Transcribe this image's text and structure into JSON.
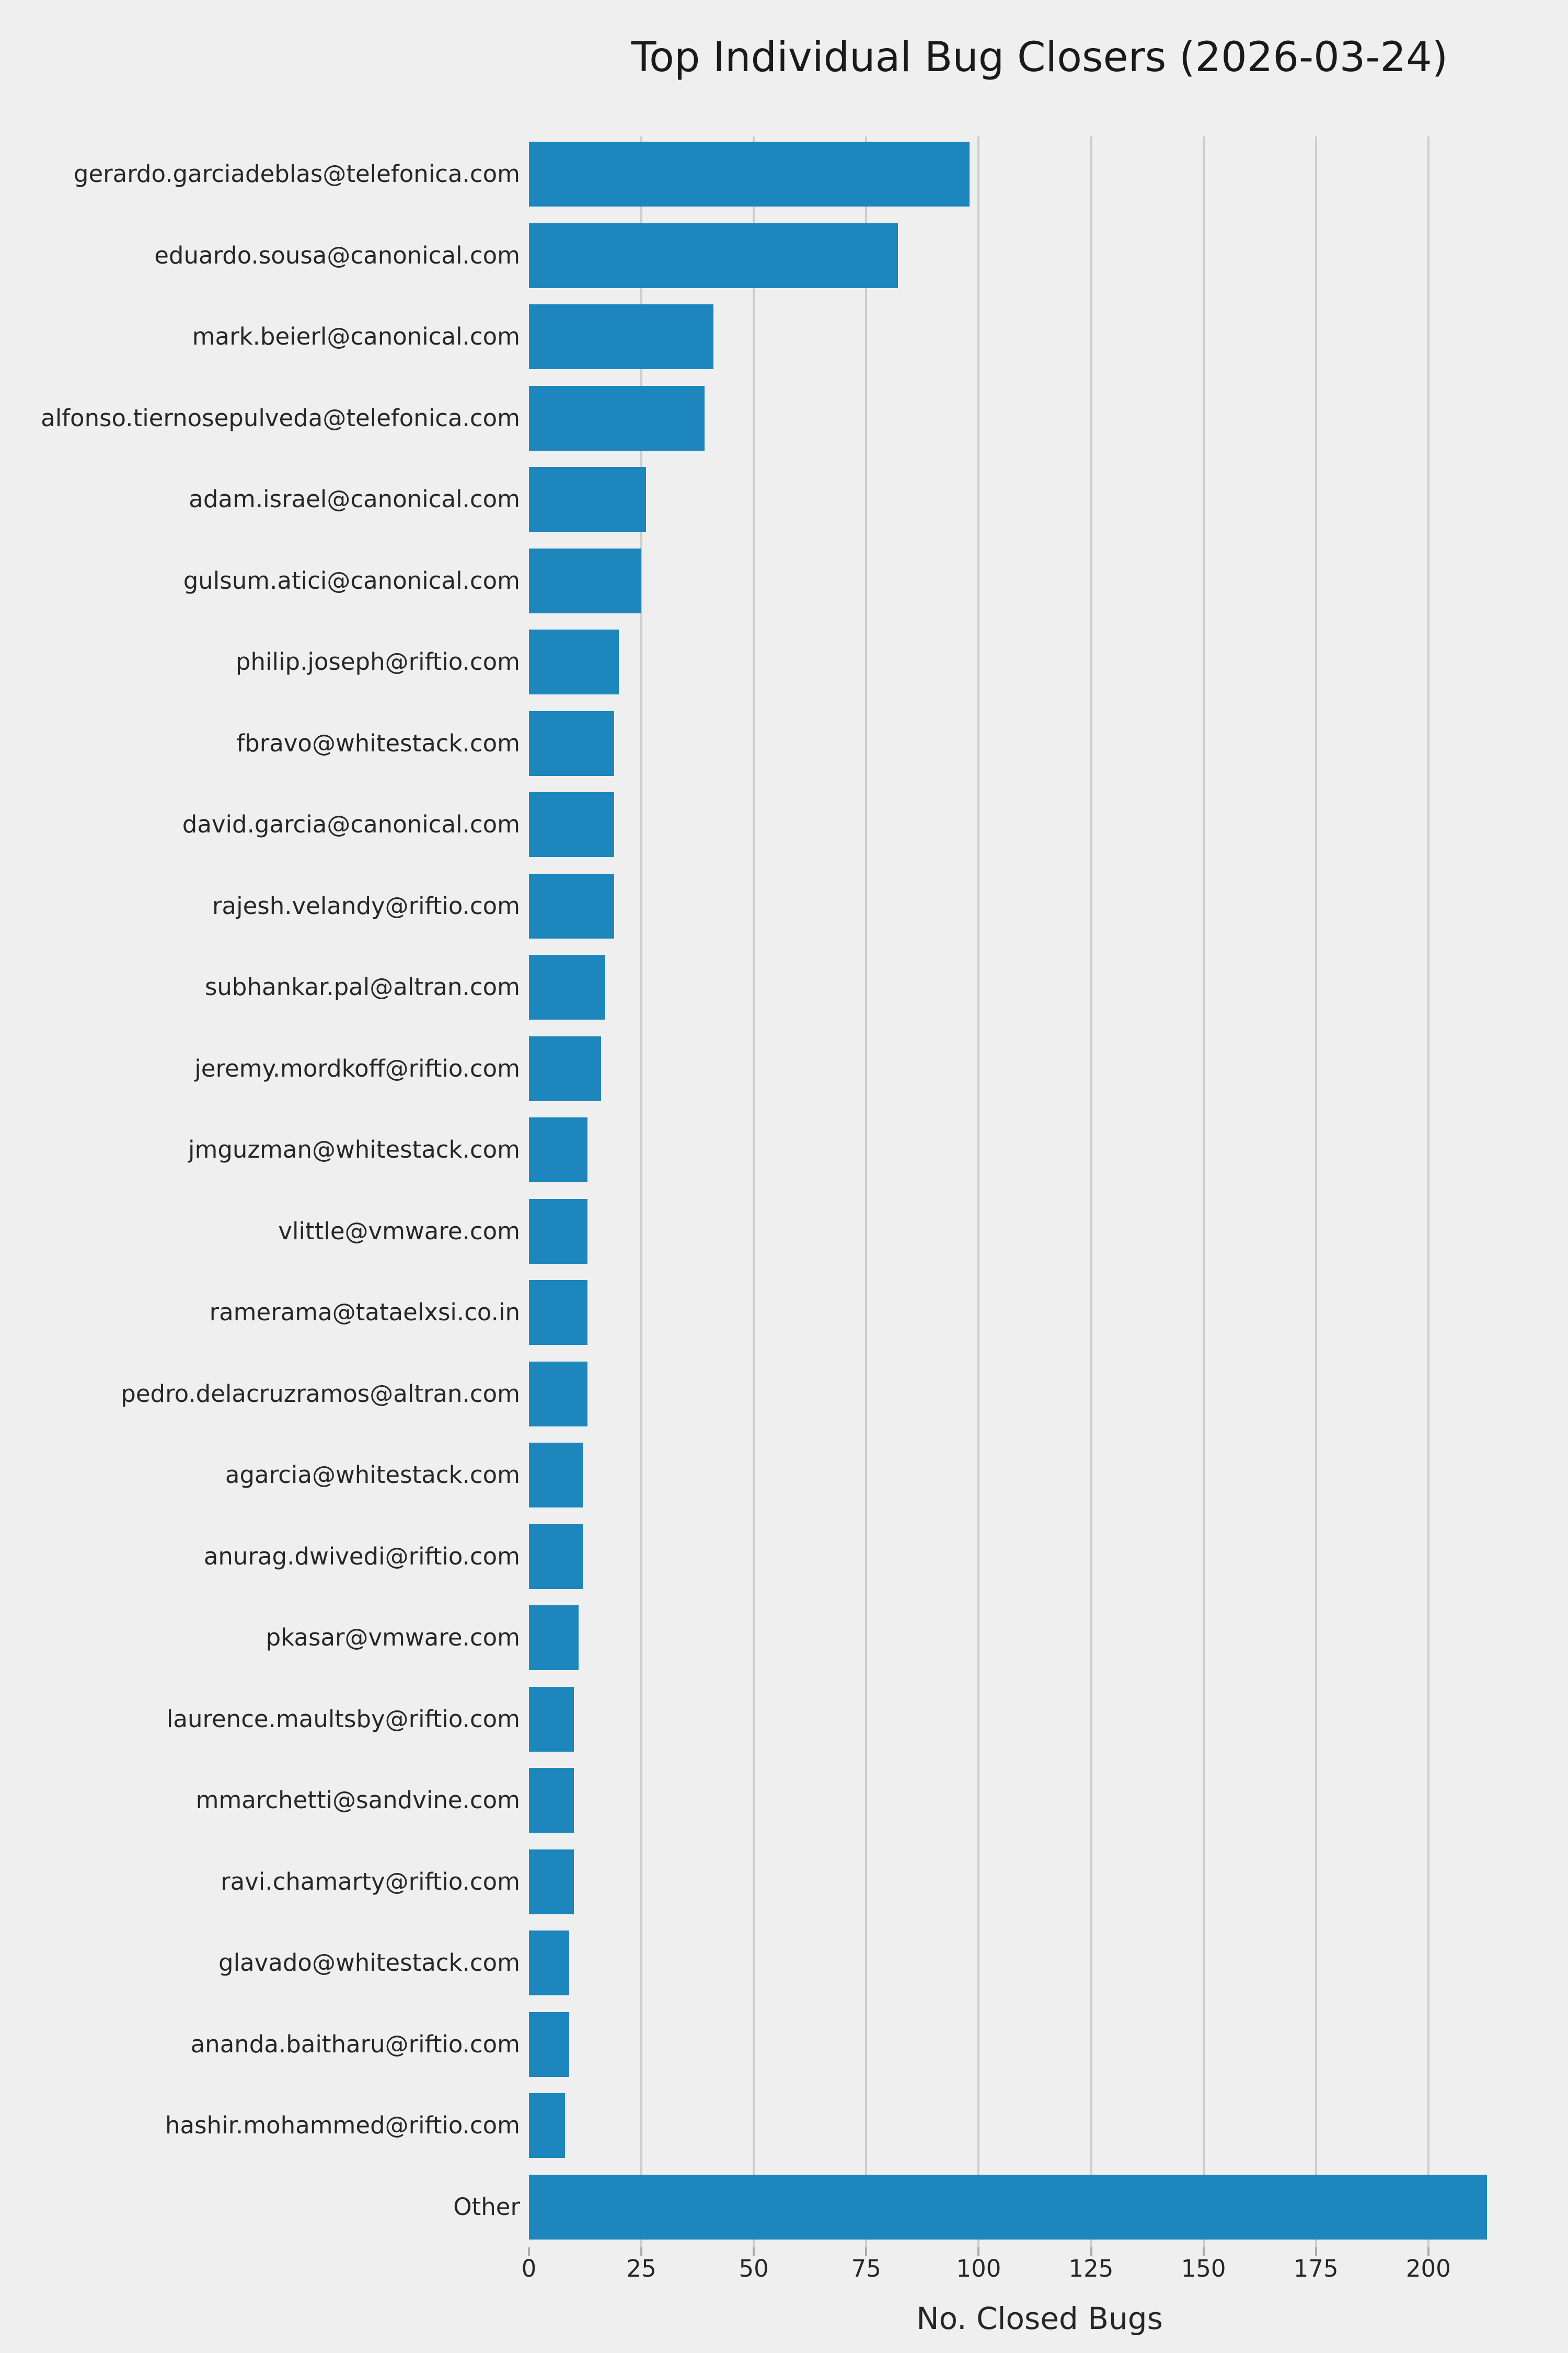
{
  "chart_data": {
    "type": "bar",
    "orientation": "horizontal",
    "title": "Top Individual Bug Closers (2026-03-24)",
    "xlabel": "No. Closed Bugs",
    "ylabel": "",
    "legend": false,
    "grid": true,
    "categories": [
      "gerardo.garciadeblas@telefonica.com",
      "eduardo.sousa@canonical.com",
      "mark.beierl@canonical.com",
      "alfonso.tiernosepulveda@telefonica.com",
      "adam.israel@canonical.com",
      "gulsum.atici@canonical.com",
      "philip.joseph@riftio.com",
      "fbravo@whitestack.com",
      "david.garcia@canonical.com",
      "rajesh.velandy@riftio.com",
      "subhankar.pal@altran.com",
      "jeremy.mordkoff@riftio.com",
      "jmguzman@whitestack.com",
      "vlittle@vmware.com",
      "ramerama@tataelxsi.co.in",
      "pedro.delacruzramos@altran.com",
      "agarcia@whitestack.com",
      "anurag.dwivedi@riftio.com",
      "pkasar@vmware.com",
      "laurence.maultsby@riftio.com",
      "mmarchetti@sandvine.com",
      "ravi.chamarty@riftio.com",
      "glavado@whitestack.com",
      "ananda.baitharu@riftio.com",
      "hashir.mohammed@riftio.com",
      "Other"
    ],
    "values": [
      98,
      82,
      41,
      39,
      26,
      25,
      20,
      19,
      19,
      19,
      17,
      16,
      13,
      13,
      13,
      13,
      12,
      12,
      11,
      10,
      10,
      10,
      9,
      9,
      8,
      213
    ],
    "x_ticks": [
      0,
      25,
      50,
      75,
      100,
      125,
      150,
      175,
      200
    ],
    "xlim": [
      0,
      227
    ],
    "style": {
      "background": "#efefef",
      "bar_color": "#1d86bd",
      "grid_color": "#cdcdcd",
      "tick_color": "#ababab",
      "text_color": "#262626",
      "title_color": "#1a1a1a"
    }
  }
}
